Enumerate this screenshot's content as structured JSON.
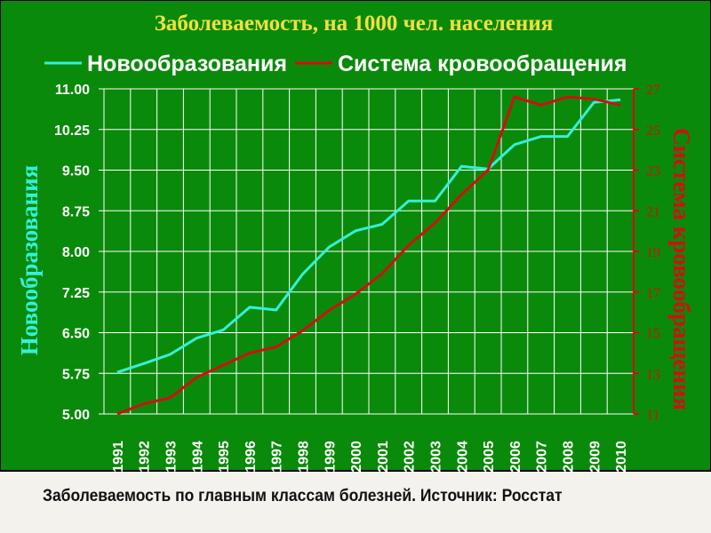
{
  "chart_data": {
    "type": "line",
    "title": "Заболеваемость, на 1000 чел. населения",
    "caption": "Заболеваемость по главным классам болезней. Источник: Росстат",
    "y_label": "Новообразования",
    "y2_label": "Система кровообращения",
    "categories": [
      "1991",
      "1992",
      "1993",
      "1994",
      "1995",
      "1996",
      "1997",
      "1998",
      "1999",
      "2000",
      "2001",
      "2002",
      "2003",
      "2004",
      "2005",
      "2006",
      "2007",
      "2008",
      "2009",
      "2010"
    ],
    "series": [
      {
        "name": "Новообразования",
        "color": "#33f0d8",
        "axis": "y",
        "values": [
          5.77,
          5.93,
          6.1,
          6.4,
          6.55,
          6.97,
          6.92,
          7.58,
          8.08,
          8.38,
          8.5,
          8.93,
          8.93,
          9.57,
          9.52,
          9.97,
          10.12,
          10.12,
          10.75,
          10.8
        ]
      },
      {
        "name": "Система кровообращения",
        "color": "#d01010",
        "axis": "y2",
        "values": [
          11.0,
          11.5,
          11.8,
          12.8,
          13.4,
          14.0,
          14.3,
          15.1,
          16.1,
          16.9,
          17.9,
          19.3,
          20.4,
          21.8,
          23.0,
          26.6,
          26.2,
          26.6,
          26.5,
          26.2
        ]
      }
    ],
    "ylim": [
      5,
      11
    ],
    "yticks": [
      {
        "value": 5,
        "label": "5.00"
      },
      {
        "value": 5.75,
        "label": "5.75"
      },
      {
        "value": 6.5,
        "label": "6.50"
      },
      {
        "value": 7.25,
        "label": "7.25"
      },
      {
        "value": 8,
        "label": "8.00"
      },
      {
        "value": 8.75,
        "label": "8.75"
      },
      {
        "value": 9.5,
        "label": "9.50"
      },
      {
        "value": 10.25,
        "label": "10.25"
      },
      {
        "value": 11,
        "label": "11.00"
      }
    ],
    "y2lim": [
      11,
      27
    ],
    "y2ticks": [
      11,
      13,
      15,
      17,
      19,
      21,
      23,
      25,
      27
    ],
    "grid": true
  }
}
